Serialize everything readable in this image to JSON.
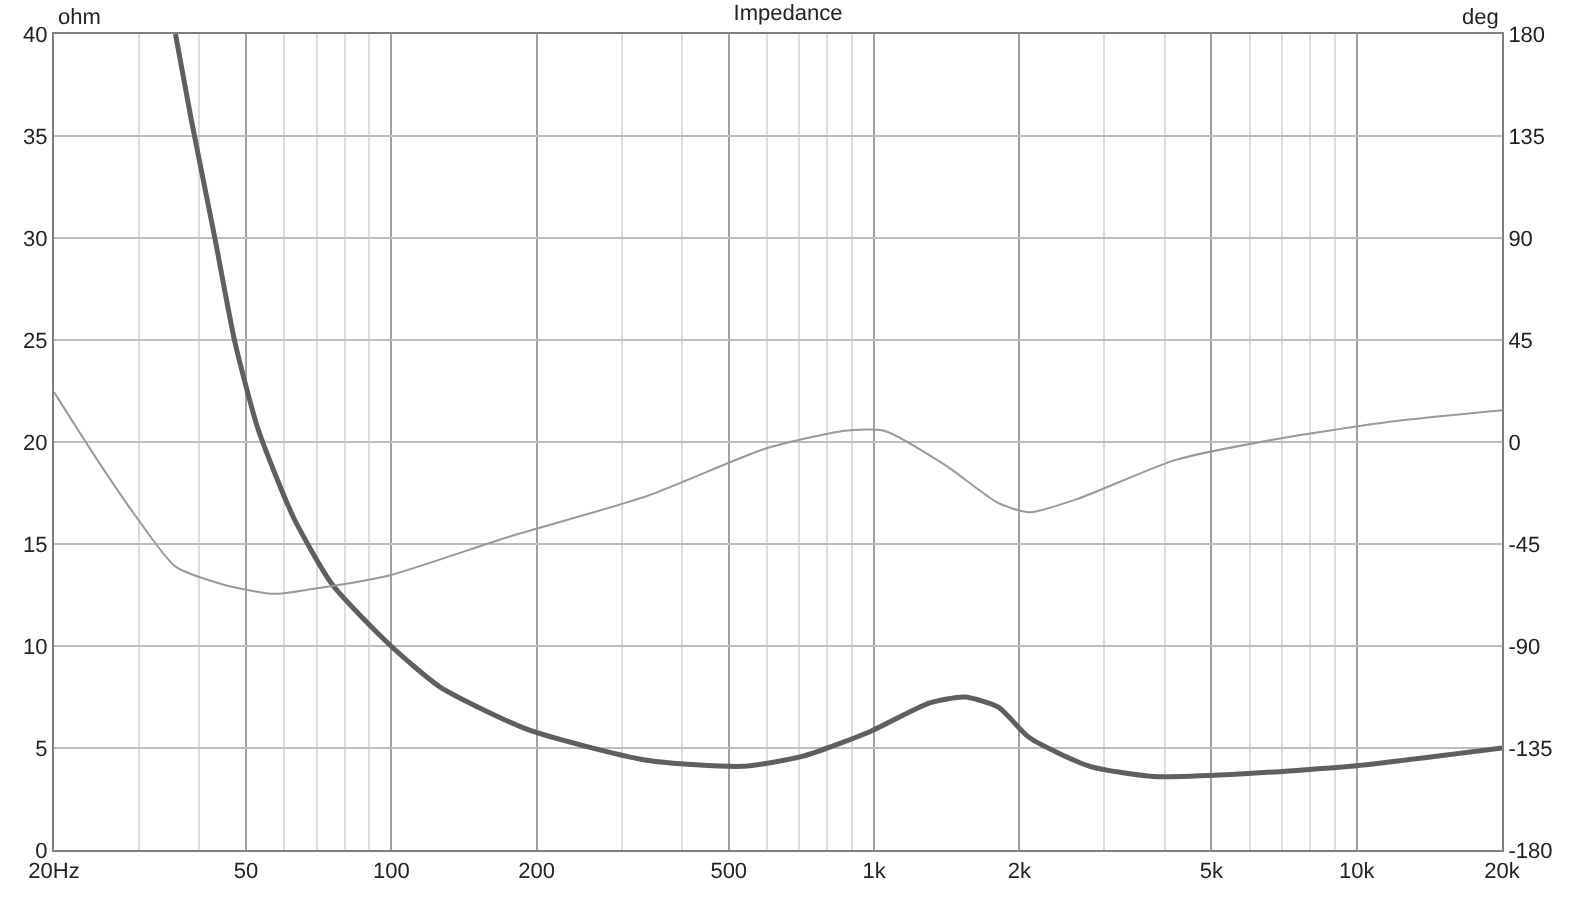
{
  "chart_data": {
    "type": "line",
    "title": "Impedance",
    "ylabel": "ohm",
    "y2label": "deg",
    "log": "x",
    "grid": true,
    "legend": false,
    "marker": "none",
    "line_style": "solid",
    "xlim": [
      20,
      20000
    ],
    "xticks": [
      {
        "value": 20,
        "label": "20Hz"
      },
      {
        "value": 30,
        "label": null
      },
      {
        "value": 40,
        "label": null
      },
      50,
      {
        "value": 60,
        "label": null
      },
      {
        "value": 70,
        "label": null
      },
      {
        "value": 80,
        "label": null
      },
      {
        "value": 90,
        "label": null
      },
      100,
      200,
      {
        "value": 300,
        "label": null
      },
      {
        "value": 400,
        "label": null
      },
      500,
      {
        "value": 600,
        "label": null
      },
      {
        "value": 700,
        "label": null
      },
      {
        "value": 800,
        "label": null
      },
      {
        "value": 900,
        "label": null
      },
      {
        "value": 1000,
        "label": "1k"
      },
      {
        "value": 2000,
        "label": "2k"
      },
      {
        "value": 3000,
        "label": null
      },
      {
        "value": 4000,
        "label": null
      },
      {
        "value": 5000,
        "label": "5k"
      },
      {
        "value": 6000,
        "label": null
      },
      {
        "value": 7000,
        "label": null
      },
      {
        "value": 8000,
        "label": null
      },
      {
        "value": 9000,
        "label": null
      },
      {
        "value": 10000,
        "label": "10k"
      },
      {
        "value": 20000,
        "label": "20k"
      }
    ],
    "ylim": [
      0,
      40
    ],
    "yticks": [
      0,
      5,
      10,
      15,
      20,
      25,
      30,
      35,
      40
    ],
    "y2lim": [
      -180,
      180
    ],
    "y2ticks": [
      -180,
      -135,
      -90,
      -45,
      0,
      45,
      90,
      135,
      180
    ],
    "series": [
      {
        "color": "#5f5f5f",
        "x": [
          35.7,
          38.5,
          43,
          47.4,
          53,
          62.7,
          75.5,
          98.8,
          126,
          192,
          338,
          535,
          713,
          980,
          1300,
          1540,
          1810,
          2100,
          2800,
          3800,
          5500,
          9700,
          20000
        ],
        "values": [
          40,
          35.8,
          30.1,
          24.9,
          20.6,
          16.3,
          13,
          10.1,
          8,
          5.9,
          4.4,
          4.1,
          4.6,
          5.8,
          7.2,
          7.5,
          7,
          5.5,
          4.1,
          3.6,
          3.7,
          4.1,
          5
        ]
      },
      {
        "color": "#999999",
        "axis": "y2",
        "x": [
          20,
          24.6,
          29.6,
          35.7,
          45,
          57,
          68,
          98.5,
          174,
          337,
          594,
          870,
          1050,
          1400,
          1810,
          2100,
          2650,
          4200,
          6700,
          11800,
          20000
        ],
        "values": [
          22,
          -8,
          -33,
          -55,
          -63,
          -67,
          -65,
          -59,
          -42,
          -24,
          -3,
          5,
          5,
          -10,
          -27,
          -31,
          -25,
          -8,
          1,
          9,
          14
        ]
      }
    ]
  }
}
